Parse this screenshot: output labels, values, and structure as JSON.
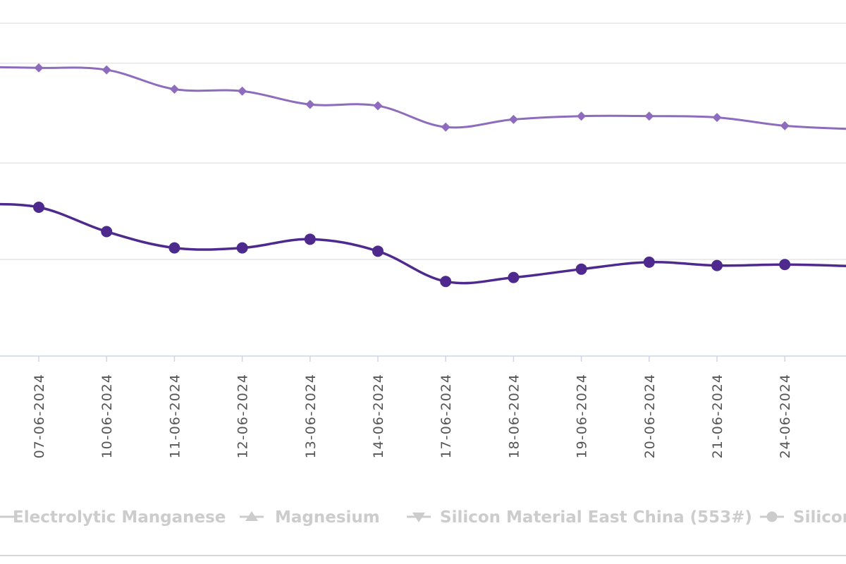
{
  "chart_data": {
    "type": "line",
    "categories": [
      "07-06-2024",
      "10-06-2024",
      "11-06-2024",
      "12-06-2024",
      "13-06-2024",
      "14-06-2024",
      "17-06-2024",
      "18-06-2024",
      "19-06-2024",
      "20-06-2024",
      "21-06-2024",
      "24-06-2024"
    ],
    "ylim": [
      0,
      100
    ],
    "grid": true,
    "series": [
      {
        "marker": "diamond",
        "color": "#8e6cbd",
        "values": [
          86.6,
          86.0,
          80.2,
          79.6,
          75.6,
          75.2,
          68.8,
          71.1,
          72.1,
          72.1,
          71.7,
          69.2
        ],
        "edge_values": [
          86.9,
          68.2
        ]
      },
      {
        "marker": "circle",
        "color": "#4f2a8e",
        "values": [
          44.7,
          37.4,
          32.5,
          32.5,
          35.1,
          31.5,
          22.4,
          23.6,
          26.1,
          28.2,
          27.2,
          27.5
        ],
        "edge_values": [
          45.6,
          27.0
        ]
      }
    ],
    "legend": {
      "placement": "bottom",
      "items": [
        {
          "label": "Electrolytic Manganese",
          "marker": "dash"
        },
        {
          "label": "Magnesium",
          "marker": "triangle-up"
        },
        {
          "label": "Silicon Material East China (553#)",
          "marker": "triangle-down"
        },
        {
          "label": "Silicon",
          "marker": "circle"
        }
      ]
    },
    "colors": {
      "grid": "#e6e6e6",
      "axis": "#ccd6eb",
      "tick_text": "#555555",
      "legend_text": "#cccccc"
    }
  }
}
